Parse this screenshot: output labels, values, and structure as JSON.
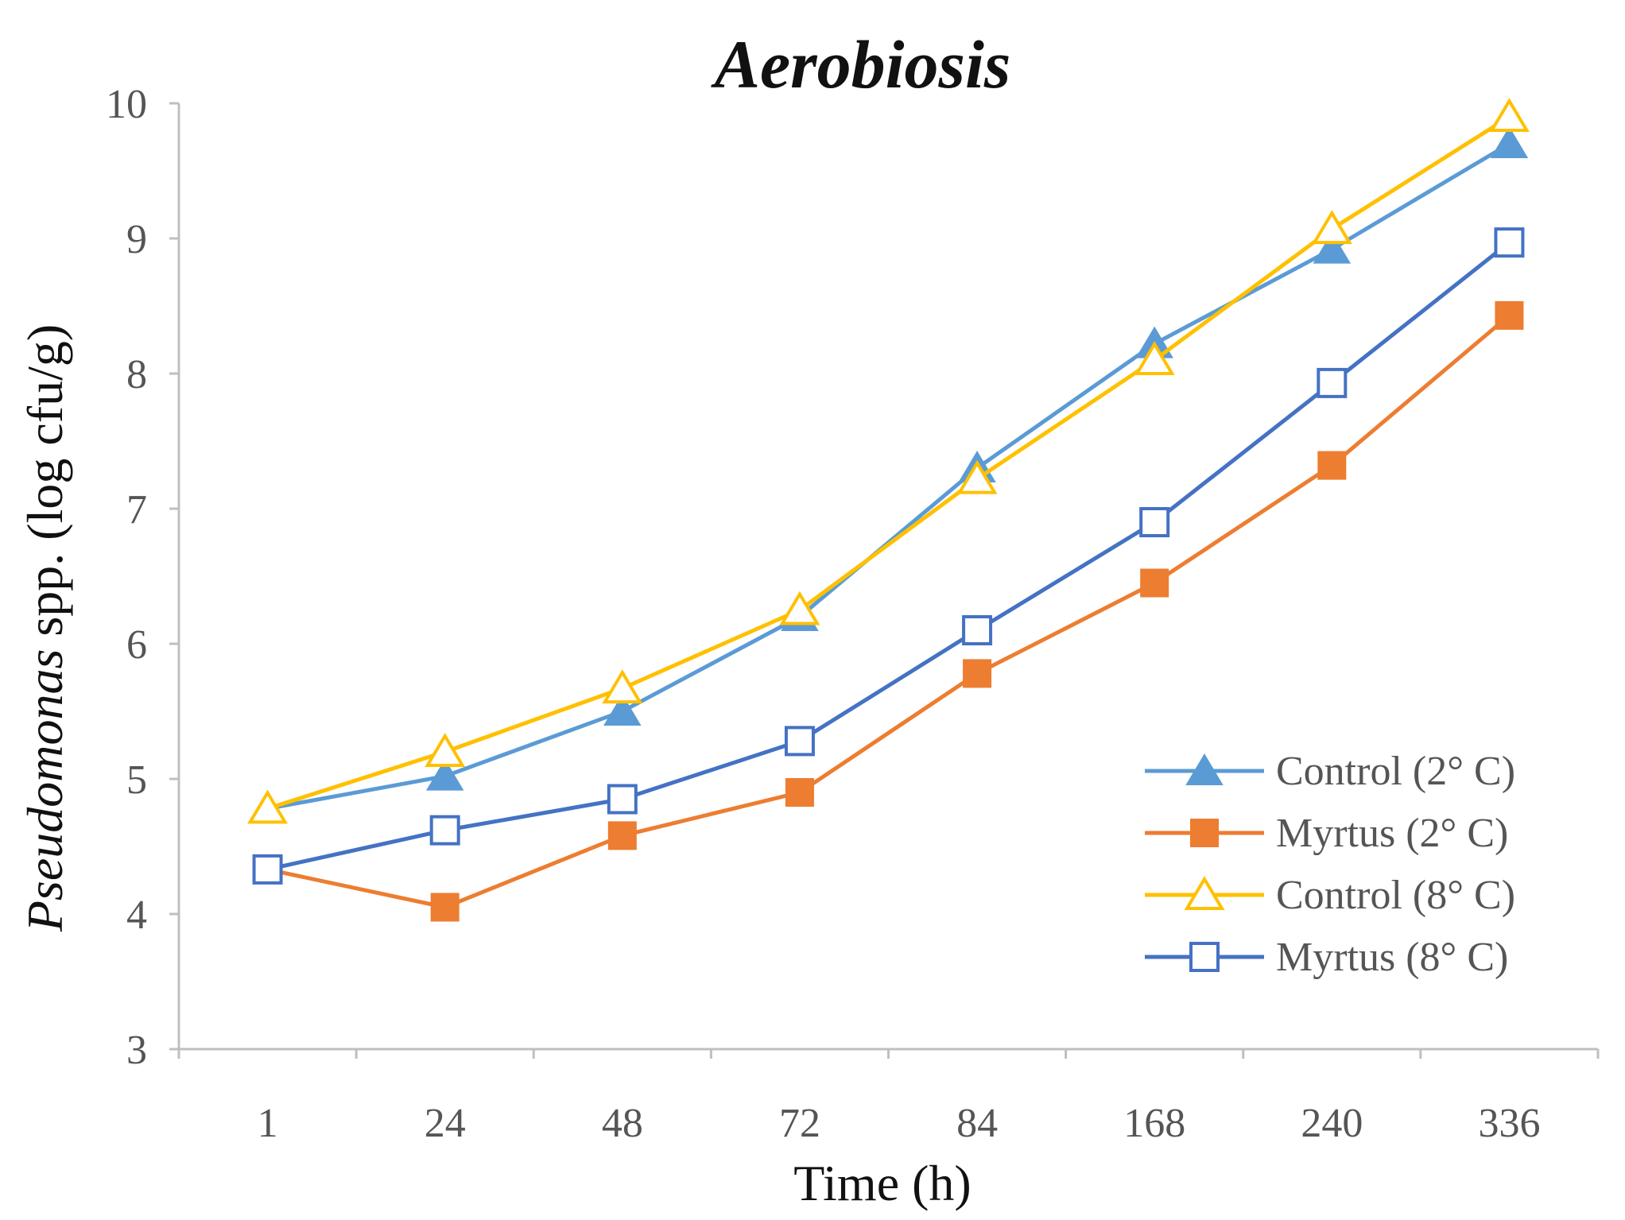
{
  "chart_data": {
    "type": "line",
    "title": "Aerobiosis",
    "xlabel": "Time (h)",
    "ylabel_italic": "Pseudomonas",
    "ylabel_rest": " spp. (log cfu/g)",
    "categories": [
      "1",
      "24",
      "48",
      "72",
      "84",
      "168",
      "240",
      "336"
    ],
    "ylim": [
      3,
      10
    ],
    "yticks": [
      3,
      4,
      5,
      6,
      7,
      8,
      9,
      10
    ],
    "grid": false,
    "legend_position": "bottom-right",
    "series": [
      {
        "name": "Control (2° C)",
        "color": "#5b9bd5",
        "marker": "triangle-filled",
        "values": [
          4.78,
          5.02,
          5.5,
          6.2,
          7.3,
          8.22,
          8.92,
          9.7
        ]
      },
      {
        "name": "Myrtus (2° C)",
        "color": "#ed7d31",
        "marker": "square-filled",
        "values": [
          4.33,
          4.05,
          4.58,
          4.9,
          5.78,
          6.45,
          7.32,
          8.43
        ]
      },
      {
        "name": "Control (8° C)",
        "color": "#ffc000",
        "marker": "triangle-open",
        "values": [
          4.78,
          5.2,
          5.67,
          6.25,
          7.22,
          8.1,
          9.07,
          9.9
        ]
      },
      {
        "name": "Myrtus (8° C)",
        "color": "#4472c4",
        "marker": "square-open",
        "values": [
          4.33,
          4.62,
          4.85,
          5.28,
          6.1,
          6.9,
          7.93,
          8.97
        ]
      }
    ]
  }
}
